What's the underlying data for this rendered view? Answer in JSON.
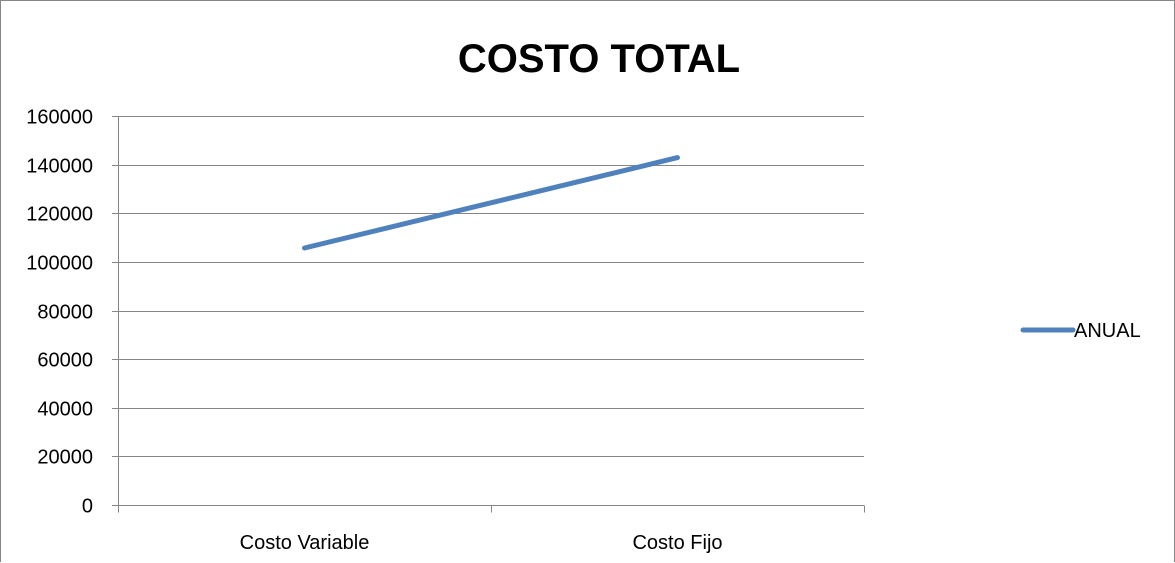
{
  "chart_data": {
    "type": "line",
    "title": "COSTO TOTAL",
    "xlabel": "",
    "ylabel": "",
    "categories": [
      "Costo Variable",
      "Costo Fijo"
    ],
    "series": [
      {
        "name": "ANUAL",
        "values": [
          105700,
          142900
        ],
        "color": "#4F81BD"
      }
    ],
    "ylim": [
      0,
      160000
    ],
    "yticks": [
      "0",
      "20000",
      "40000",
      "60000",
      "80000",
      "100000",
      "120000",
      "140000",
      "160000"
    ],
    "grid": true,
    "legend": "right"
  }
}
